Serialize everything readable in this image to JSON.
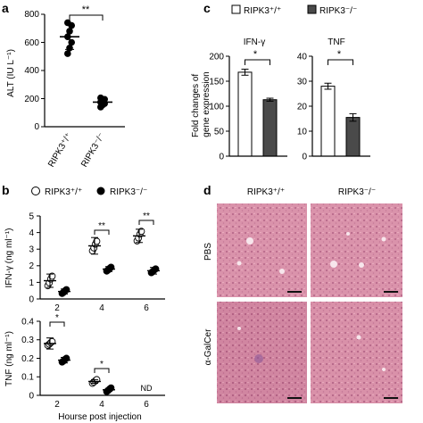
{
  "panels": {
    "a": {
      "letter": "a",
      "ylabel": "ALT (IU L⁻¹)",
      "yticks": [
        "0",
        "200",
        "400",
        "600",
        "800"
      ],
      "categories": [
        "RIPK3⁺/⁺",
        "RIPK3⁻/⁻"
      ],
      "sig": "**"
    },
    "b": {
      "letter": "b",
      "legend": [
        "RIPK3⁺/⁺",
        "RIPK3⁻/⁻"
      ],
      "top_ylabel": "IFN-γ (ng ml⁻¹)",
      "top_yticks": [
        "0",
        "1",
        "2",
        "3",
        "4",
        "5"
      ],
      "top_xticks": [
        "2",
        "4",
        "6"
      ],
      "top_sig": [
        "**",
        "**"
      ],
      "bottom_ylabel": "TNF (ng ml⁻¹)",
      "bottom_yticks": [
        "0",
        "0.1",
        "0.2",
        "0.3",
        "0.4"
      ],
      "bottom_xticks": [
        "2",
        "4",
        "6"
      ],
      "bottom_sig": [
        "*",
        "*"
      ],
      "nd": "ND",
      "xlabel": "Hourse post injection"
    },
    "c": {
      "letter": "c",
      "legend": [
        "RIPK3⁺/⁺",
        "RIPK3⁻/⁻"
      ],
      "ylabel_line1": "Fold changes of",
      "ylabel_line2": "gene expression",
      "ifn_title": "IFN-γ",
      "ifn_yticks": [
        "0",
        "50",
        "100",
        "150",
        "200"
      ],
      "tnf_title": "TNF",
      "tnf_yticks": [
        "0",
        "10",
        "20",
        "30",
        "40"
      ],
      "sig": "*"
    },
    "d": {
      "letter": "d",
      "col_labels": [
        "RIPK3⁺/⁺",
        "RIPK3⁻/⁻"
      ],
      "row_labels": [
        "PBS",
        "α-GalCer"
      ]
    }
  },
  "colors": {
    "ko_fill": "#4a4a4a",
    "he_tissue": "#d9849e",
    "he_light": "#eeb8c8"
  },
  "chart_data": [
    {
      "panel": "a",
      "type": "scatter",
      "ylabel": "ALT (IU L⁻¹)",
      "ylim": [
        0,
        800
      ],
      "categories": [
        "RIPK3⁺/⁺",
        "RIPK3⁻/⁻"
      ],
      "means": [
        640,
        175
      ],
      "sd": [
        90,
        25
      ],
      "points": [
        [
          520,
          560,
          600,
          640,
          680,
          720,
          740
        ],
        [
          140,
          155,
          165,
          175,
          185,
          195,
          205
        ]
      ],
      "annotations": [
        "**"
      ]
    },
    {
      "panel": "b-top",
      "type": "scatter",
      "ylabel": "IFN-γ (ng ml⁻¹)",
      "ylim": [
        0,
        5
      ],
      "x": [
        2,
        4,
        6
      ],
      "series": [
        {
          "name": "RIPK3⁺/⁺",
          "values": [
            1.1,
            3.2,
            3.8
          ],
          "sd": [
            0.4,
            0.5,
            0.4
          ]
        },
        {
          "name": "RIPK3⁻/⁻",
          "values": [
            0.45,
            1.8,
            1.7
          ],
          "sd": [
            0.15,
            0.15,
            0.2
          ]
        }
      ],
      "annotations": [
        "**",
        "**"
      ]
    },
    {
      "panel": "b-bottom",
      "type": "scatter",
      "ylabel": "TNF (ng ml⁻¹)",
      "xlabel": "Hourse post injection",
      "ylim": [
        0,
        0.4
      ],
      "x": [
        2,
        4,
        6
      ],
      "series": [
        {
          "name": "RIPK3⁺/⁺",
          "values": [
            0.28,
            0.075,
            null
          ],
          "sd": [
            0.03,
            0.01,
            null
          ]
        },
        {
          "name": "RIPK3⁻/⁻",
          "values": [
            0.19,
            0.03,
            null
          ],
          "sd": [
            0.015,
            0.008,
            null
          ]
        }
      ],
      "annotations": [
        "*",
        "*",
        "ND"
      ]
    },
    {
      "panel": "c-IFN",
      "type": "bar",
      "title": "IFN-γ",
      "ylabel": "Fold changes of gene expression",
      "ylim": [
        0,
        200
      ],
      "categories": [
        "RIPK3⁺/⁺",
        "RIPK3⁻/⁻"
      ],
      "values": [
        168,
        113
      ],
      "errors": [
        6,
        3
      ],
      "annotations": [
        "*"
      ]
    },
    {
      "panel": "c-TNF",
      "type": "bar",
      "title": "TNF",
      "ylim": [
        0,
        40
      ],
      "categories": [
        "RIPK3⁺/⁺",
        "RIPK3⁻/⁻"
      ],
      "values": [
        28,
        15.5
      ],
      "errors": [
        1.2,
        1.5
      ],
      "annotations": [
        "*"
      ]
    }
  ]
}
